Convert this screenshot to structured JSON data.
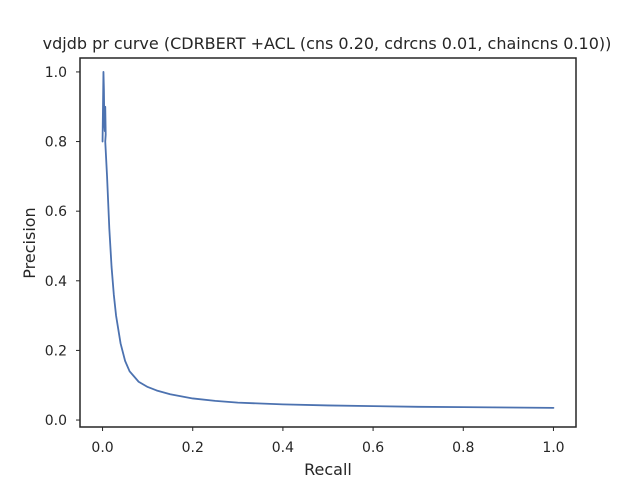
{
  "chart_data": {
    "type": "line",
    "title": "vdjdb pr curve (CDRBERT +ACL (cns 0.20, cdrcns 0.01, chaincns 0.10))",
    "xlabel": "Recall",
    "ylabel": "Precision",
    "xlim": [
      -0.05,
      1.05
    ],
    "ylim": [
      -0.02,
      1.04
    ],
    "xticks": [
      0.0,
      0.2,
      0.4,
      0.6,
      0.8,
      1.0
    ],
    "xtick_labels": [
      "0.0",
      "0.2",
      "0.4",
      "0.6",
      "0.8",
      "1.0"
    ],
    "yticks": [
      0.0,
      0.2,
      0.4,
      0.6,
      0.8,
      1.0
    ],
    "ytick_labels": [
      "0.0",
      "0.2",
      "0.4",
      "0.6",
      "0.8",
      "1.0"
    ],
    "grid": false,
    "colors": {
      "series": "#4c72b0",
      "frame": "#262626",
      "text": "#262626"
    },
    "series": [
      {
        "x": [
          0.0,
          0.001,
          0.002,
          0.003,
          0.004,
          0.005,
          0.006,
          0.007,
          0.006,
          0.008,
          0.01,
          0.015,
          0.02,
          0.025,
          0.03,
          0.04,
          0.05,
          0.06,
          0.07,
          0.08,
          0.1,
          0.12,
          0.15,
          0.2,
          0.25,
          0.3,
          0.4,
          0.5,
          0.6,
          0.7,
          0.8,
          0.9,
          1.0
        ],
        "y": [
          0.8,
          0.9,
          1.0,
          0.95,
          0.85,
          0.83,
          0.9,
          0.82,
          0.8,
          0.75,
          0.7,
          0.55,
          0.44,
          0.36,
          0.3,
          0.22,
          0.17,
          0.14,
          0.125,
          0.11,
          0.095,
          0.085,
          0.074,
          0.062,
          0.055,
          0.05,
          0.045,
          0.042,
          0.04,
          0.038,
          0.037,
          0.036,
          0.035
        ]
      }
    ]
  }
}
